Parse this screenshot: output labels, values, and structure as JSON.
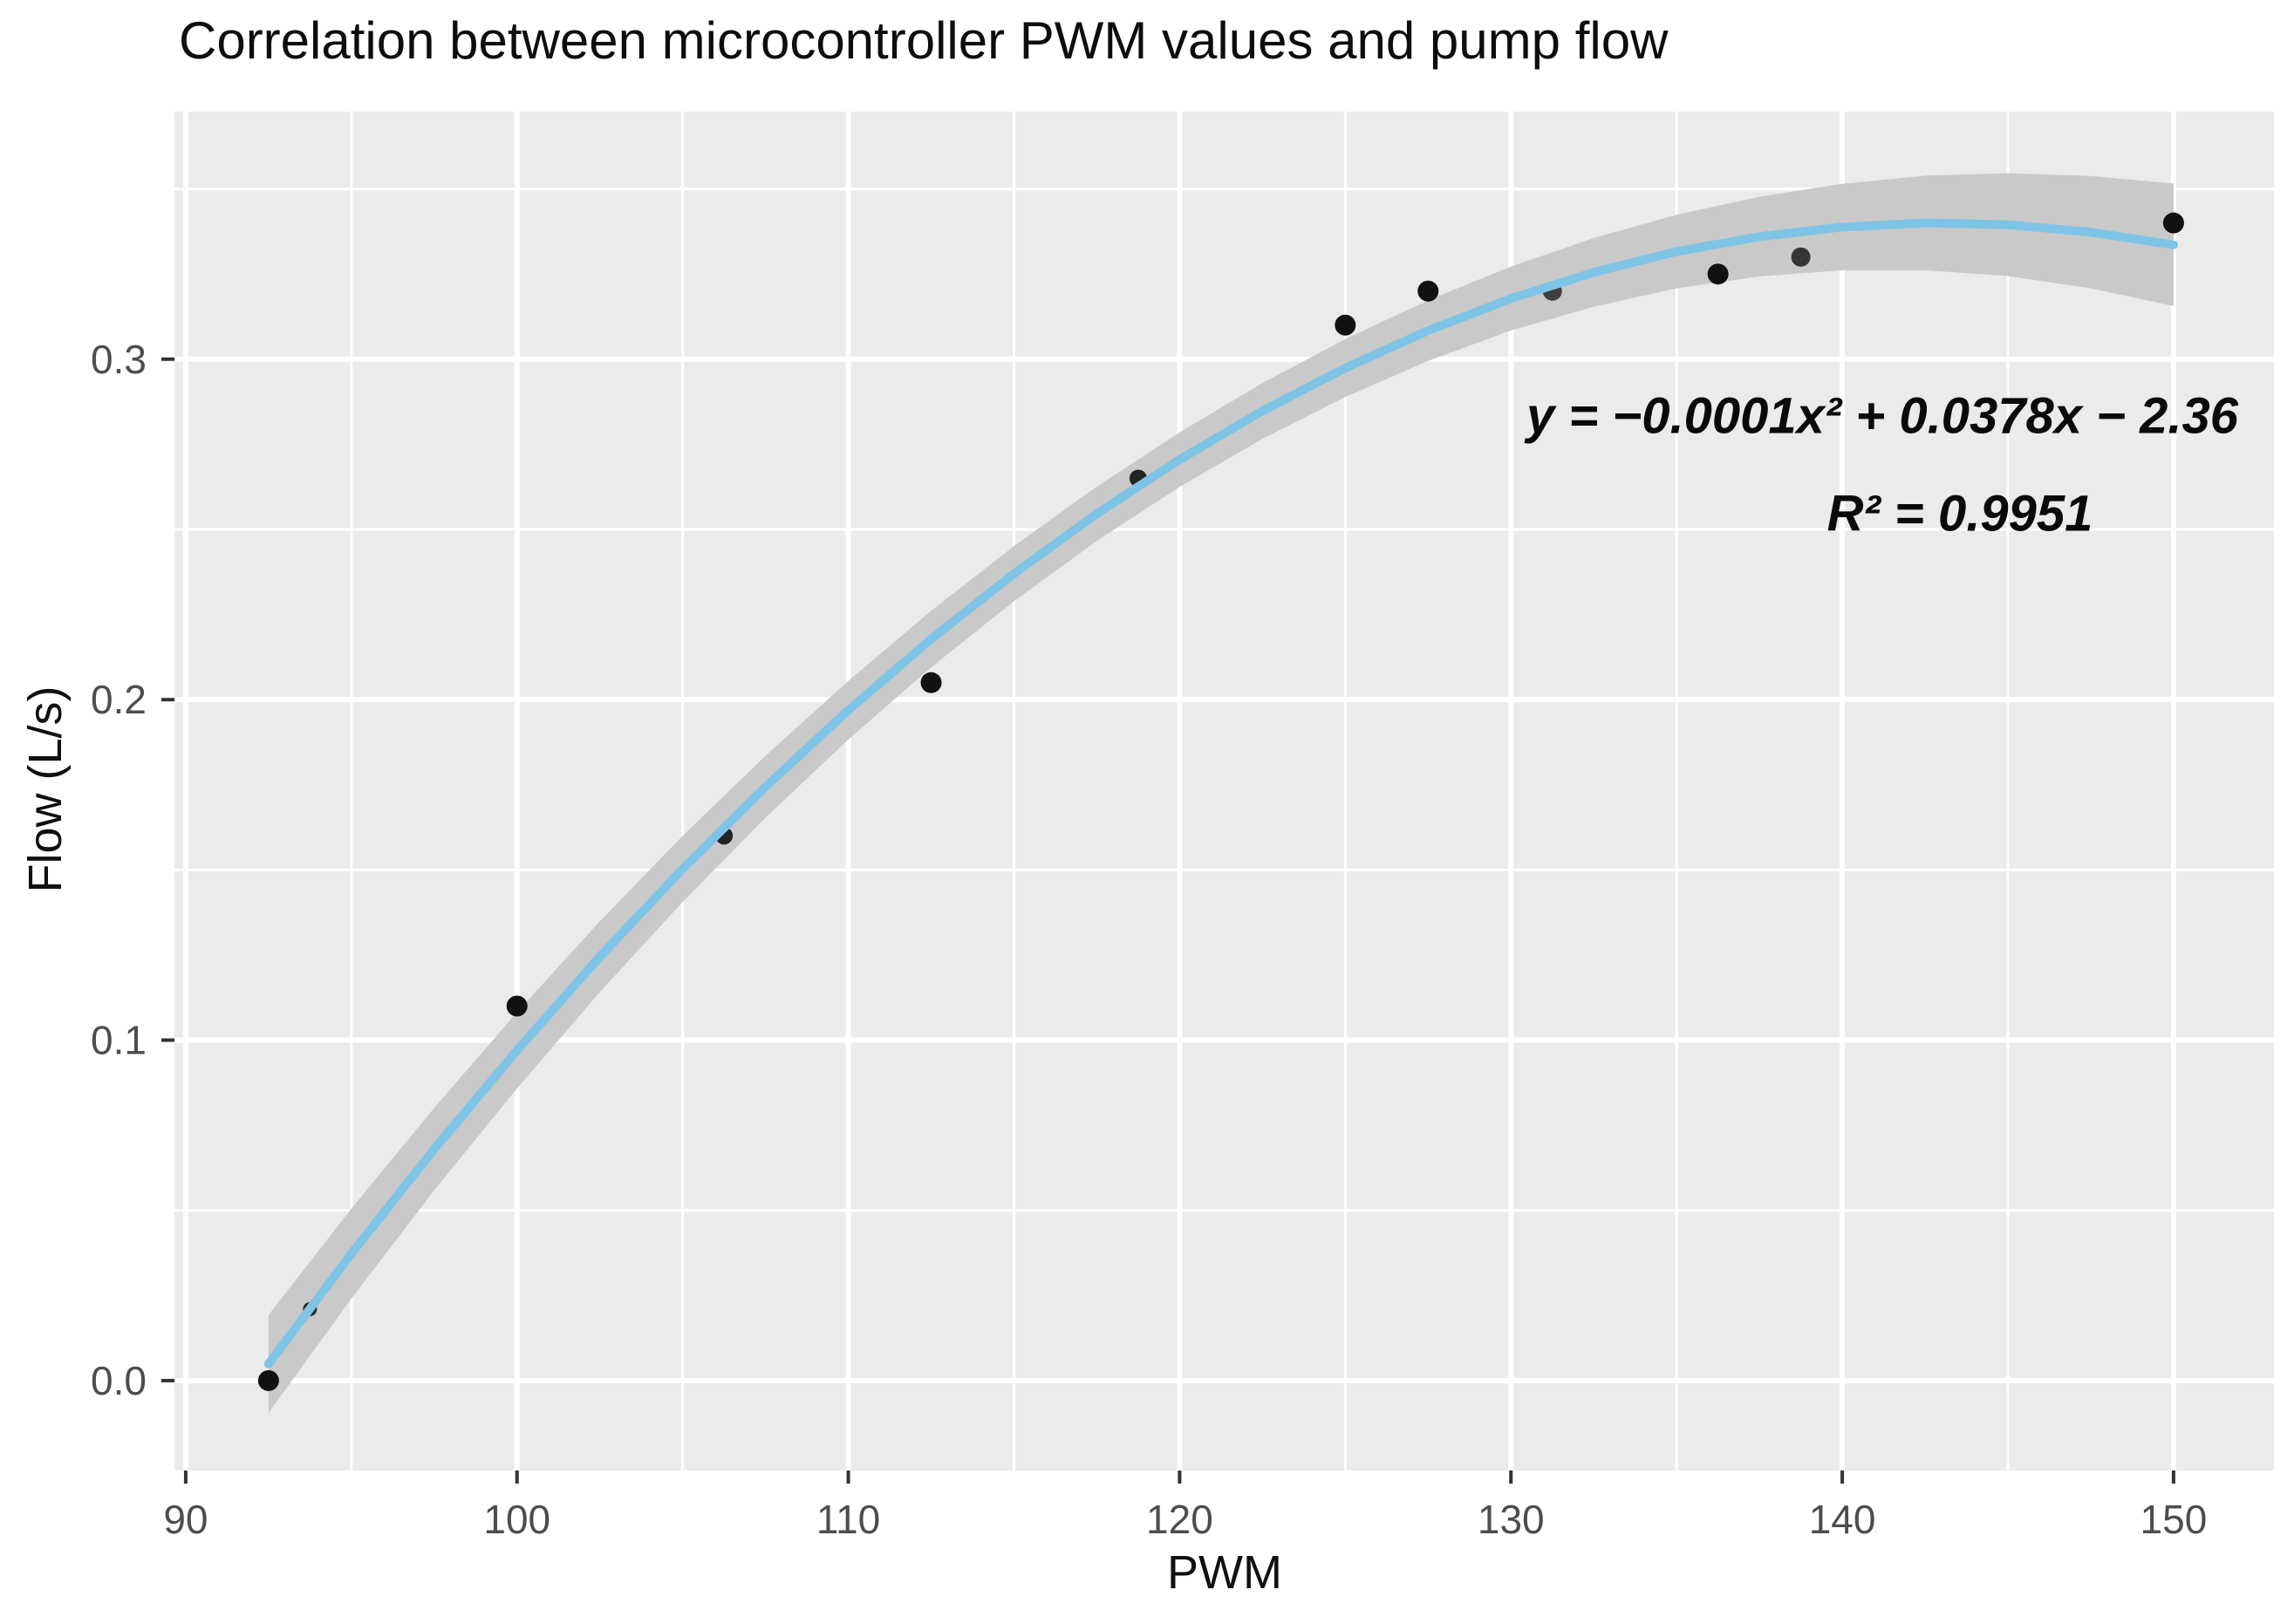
{
  "title": "Correlation between microcontroller PWM values and pump flow",
  "chart_data": {
    "type": "scatter",
    "title": "Correlation between microcontroller PWM values and pump flow",
    "xlabel": "PWM",
    "ylabel": "Flow (L/s)",
    "xlim": [
      89.66,
      153.03
    ],
    "ylim": [
      -0.0264,
      0.3727
    ],
    "grid": true,
    "legend_position": "none",
    "x_ticks": [
      {
        "value": 90,
        "label": "90"
      },
      {
        "value": 100,
        "label": "100"
      },
      {
        "value": 110,
        "label": "110"
      },
      {
        "value": 120,
        "label": "120"
      },
      {
        "value": 130,
        "label": "130"
      },
      {
        "value": 140,
        "label": "140"
      },
      {
        "value": 150,
        "label": "150"
      }
    ],
    "y_ticks": [
      {
        "value": 0.0,
        "label": "0.0"
      },
      {
        "value": 0.1,
        "label": "0.1"
      },
      {
        "value": 0.2,
        "label": "0.2"
      },
      {
        "value": 0.3,
        "label": "0.3"
      }
    ],
    "x_minor_ticks": [
      95,
      105,
      115,
      125,
      135,
      145
    ],
    "y_minor_ticks": [
      0.05,
      0.15,
      0.25,
      0.35
    ],
    "points": {
      "x": [
        92.5,
        93.75,
        100,
        106.25,
        112.5,
        118.75,
        125,
        127.5,
        131.25,
        136.25,
        138.75,
        150
      ],
      "y": [
        0.0,
        0.021,
        0.11,
        0.16,
        0.205,
        0.265,
        0.31,
        0.32,
        0.32,
        0.325,
        0.33,
        0.34
      ]
    },
    "smooth": {
      "comment": "blue quadratic fit curve with gray confidence ribbon (center y and ribbon half-width per x)",
      "x": [
        92.5,
        95,
        97.5,
        100,
        102.5,
        105,
        107.5,
        110,
        112.5,
        115,
        117.5,
        120,
        122.5,
        125,
        127.5,
        130,
        132.5,
        135,
        137.5,
        140,
        142.5,
        145,
        147.5,
        150
      ],
      "y": [
        0.0049,
        0.0373,
        0.068,
        0.097,
        0.1245,
        0.1503,
        0.1744,
        0.1969,
        0.2178,
        0.237,
        0.2546,
        0.2705,
        0.2848,
        0.2974,
        0.3084,
        0.3178,
        0.3255,
        0.3316,
        0.336,
        0.3388,
        0.34,
        0.3395,
        0.3373,
        0.3336
      ],
      "half_width": [
        0.0144,
        0.0132,
        0.0121,
        0.0112,
        0.0104,
        0.0097,
        0.0091,
        0.0086,
        0.0083,
        0.0081,
        0.008,
        0.008,
        0.0082,
        0.0085,
        0.0089,
        0.0094,
        0.0101,
        0.0108,
        0.0117,
        0.0127,
        0.0139,
        0.0151,
        0.0165,
        0.018
      ]
    },
    "annotations": {
      "equation": "y = −0.0001x² + 0.0378x − 2.36",
      "r_squared": "R² = 0.9951"
    },
    "colors": {
      "panel_background": "#ebebeb",
      "gridline": "#ffffff",
      "ribbon": "#c9c9c9",
      "fit_line": "#7ec4e6",
      "point": "#111111",
      "tick_label": "#4d4d4d",
      "tick_mark": "#333333",
      "title_text": "#0d0d0d"
    }
  }
}
